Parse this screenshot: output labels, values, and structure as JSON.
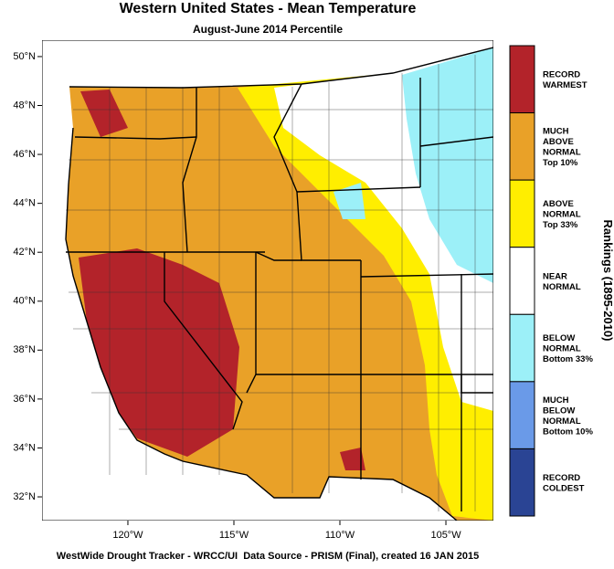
{
  "title": "Western United States - Mean Temperature",
  "subtitle": "August-June 2014 Percentile",
  "footer": "WestWide Drought Tracker - WRCC/UI  Data Source - PRISM (Final), created 16 JAN 2015",
  "map": {
    "xlim": [
      -124.05,
      -102.76
    ],
    "ylim": [
      31.03,
      50.67
    ],
    "yticks": [
      {
        "value": 50,
        "label": "50°N"
      },
      {
        "value": 48,
        "label": "48°N"
      },
      {
        "value": 46,
        "label": "46°N"
      },
      {
        "value": 44,
        "label": "44°N"
      },
      {
        "value": 42,
        "label": "42°N"
      },
      {
        "value": 40,
        "label": "40°N"
      },
      {
        "value": 38,
        "label": "38°N"
      },
      {
        "value": 36,
        "label": "36°N"
      },
      {
        "value": 34,
        "label": "34°N"
      },
      {
        "value": 32,
        "label": "32°N"
      }
    ],
    "xticks": [
      {
        "value": -120,
        "label": "120°W"
      },
      {
        "value": -115,
        "label": "115°W"
      },
      {
        "value": -110,
        "label": "110°W"
      },
      {
        "value": -105,
        "label": "105°W"
      }
    ]
  },
  "legend": {
    "title": "Rankings (1895-2010)",
    "items": [
      {
        "color": "#b3232a",
        "label": [
          "RECORD",
          "WARMEST"
        ]
      },
      {
        "color": "#e9a128",
        "label": [
          "MUCH",
          "ABOVE",
          "NORMAL",
          "Top 10%"
        ]
      },
      {
        "color": "#ffee00",
        "label": [
          "ABOVE",
          "NORMAL",
          "Top 33%"
        ]
      },
      {
        "color": "#ffffff",
        "label": [
          "NEAR",
          "NORMAL"
        ]
      },
      {
        "color": "#9cf0f8",
        "label": [
          "BELOW",
          "NORMAL",
          "Bottom 33%"
        ]
      },
      {
        "color": "#6a9ae8",
        "label": [
          "MUCH",
          "BELOW",
          "NORMAL",
          "Bottom 10%"
        ]
      },
      {
        "color": "#2a4494",
        "label": [
          "RECORD",
          "COLDEST"
        ]
      }
    ]
  }
}
